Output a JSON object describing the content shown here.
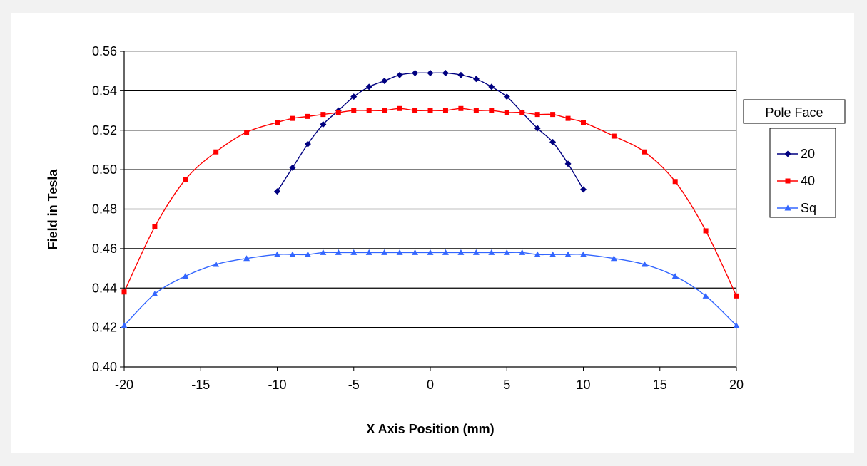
{
  "chart_data": {
    "type": "line",
    "title": "",
    "xlabel": "X Axis Position (mm)",
    "ylabel": "Field in Tesla",
    "xlim": [
      -20,
      20
    ],
    "ylim": [
      0.4,
      0.56
    ],
    "x_ticks": [
      "-20",
      "-15",
      "-10",
      "-5",
      "0",
      "5",
      "10",
      "15",
      "20"
    ],
    "y_ticks": [
      "0.40",
      "0.42",
      "0.44",
      "0.46",
      "0.48",
      "0.50",
      "0.52",
      "0.54",
      "0.56"
    ],
    "grid": "horizontal",
    "legend": {
      "title": "Pole Face",
      "placement": "right"
    },
    "series": [
      {
        "name": "20",
        "color": "#000080",
        "marker": "diamond",
        "x": [
          -10,
          -9,
          -8,
          -7,
          -6,
          -5,
          -4,
          -3,
          -2,
          -1,
          0,
          1,
          2,
          3,
          4,
          5,
          6,
          7,
          8,
          9,
          10
        ],
        "y": [
          0.489,
          0.501,
          0.513,
          0.523,
          0.53,
          0.537,
          0.542,
          0.545,
          0.548,
          0.549,
          0.549,
          0.549,
          0.548,
          0.546,
          0.542,
          0.537,
          0.529,
          0.521,
          0.514,
          0.503,
          0.49
        ]
      },
      {
        "name": "40",
        "color": "#ff0000",
        "marker": "square",
        "x": [
          -20,
          -18,
          -16,
          -14,
          -12,
          -10,
          -9,
          -8,
          -7,
          -6,
          -5,
          -4,
          -3,
          -2,
          -1,
          0,
          1,
          2,
          3,
          4,
          5,
          6,
          7,
          8,
          9,
          10,
          12,
          14,
          16,
          18,
          20
        ],
        "y": [
          0.438,
          0.471,
          0.495,
          0.509,
          0.519,
          0.524,
          0.526,
          0.527,
          0.528,
          0.529,
          0.53,
          0.53,
          0.53,
          0.531,
          0.53,
          0.53,
          0.53,
          0.531,
          0.53,
          0.53,
          0.529,
          0.529,
          0.528,
          0.528,
          0.526,
          0.524,
          0.517,
          0.509,
          0.494,
          0.469,
          0.436
        ]
      },
      {
        "name": "Sq",
        "color": "#3366ff",
        "marker": "triangle",
        "x": [
          -20,
          -18,
          -16,
          -14,
          -12,
          -10,
          -9,
          -8,
          -7,
          -6,
          -5,
          -4,
          -3,
          -2,
          -1,
          0,
          1,
          2,
          3,
          4,
          5,
          6,
          7,
          8,
          9,
          10,
          12,
          14,
          16,
          18,
          20
        ],
        "y": [
          0.421,
          0.437,
          0.446,
          0.452,
          0.455,
          0.457,
          0.457,
          0.457,
          0.458,
          0.458,
          0.458,
          0.458,
          0.458,
          0.458,
          0.458,
          0.458,
          0.458,
          0.458,
          0.458,
          0.458,
          0.458,
          0.458,
          0.457,
          0.457,
          0.457,
          0.457,
          0.455,
          0.452,
          0.446,
          0.436,
          0.421
        ]
      }
    ]
  }
}
